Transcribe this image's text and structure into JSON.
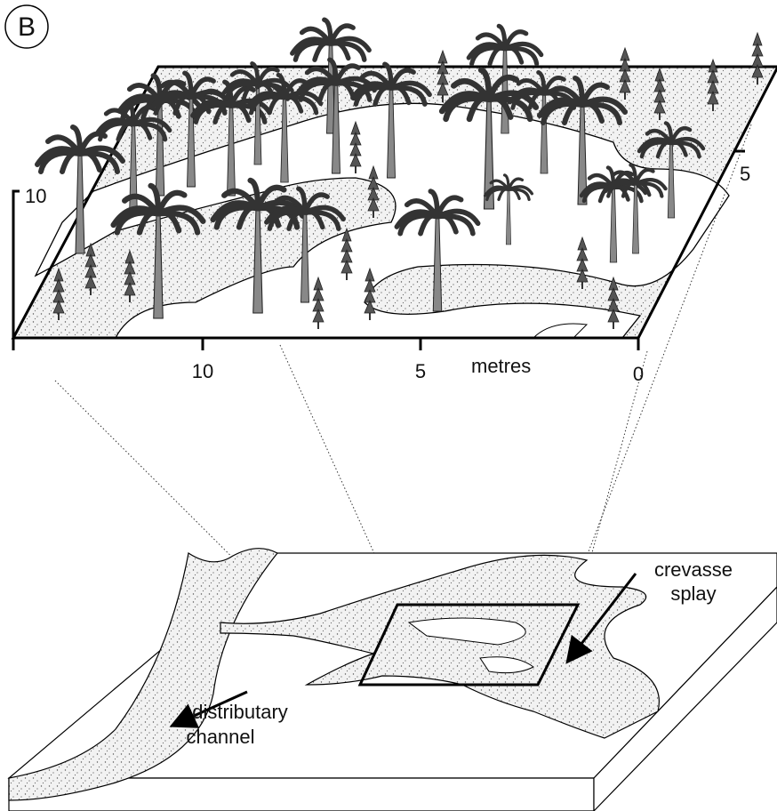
{
  "panel_label": "B",
  "upper_block": {
    "vertical_scale": "10",
    "depth_scale": "5",
    "horizontal_scale": [
      "10",
      "5",
      "0"
    ],
    "unit": "metres"
  },
  "lower_block": {
    "crevasse_splay": [
      "crevasse",
      "splay"
    ],
    "distributary_channel": [
      "distributary",
      "channel"
    ]
  }
}
